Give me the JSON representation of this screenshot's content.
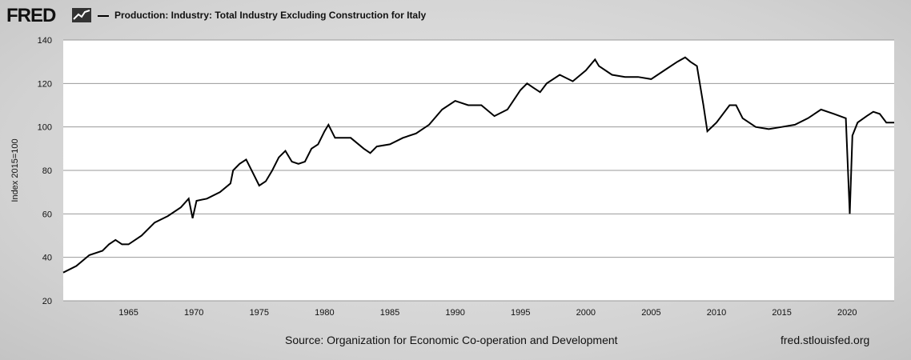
{
  "header": {
    "logo": "FRED",
    "logo_icon": "chart-line-icon",
    "title": "Production: Industry: Total Industry Excluding Construction for Italy"
  },
  "footer": {
    "source": "Source: Organization for Economic Co-operation and Development",
    "url": "fred.stlouisfed.org"
  },
  "chart_data": {
    "type": "line",
    "title": "Production: Industry: Total Industry Excluding Construction for Italy",
    "ylabel": "Index 2015=100",
    "xlabel": "",
    "xlim": [
      1960.0,
      2023.6
    ],
    "ylim": [
      20,
      140
    ],
    "yticks": [
      20,
      40,
      60,
      80,
      100,
      120,
      140
    ],
    "xticks": [
      1965,
      1970,
      1975,
      1980,
      1985,
      1990,
      1995,
      2000,
      2005,
      2010,
      2015,
      2020
    ],
    "grid": true,
    "line_color": "#000000",
    "series": [
      {
        "name": "Production: Industry: Total Industry Excluding Construction for Italy",
        "points": [
          [
            1960.0,
            33
          ],
          [
            1961.0,
            36
          ],
          [
            1962.0,
            41
          ],
          [
            1963.0,
            43
          ],
          [
            1963.5,
            46
          ],
          [
            1964.0,
            48
          ],
          [
            1964.5,
            46
          ],
          [
            1965.0,
            46
          ],
          [
            1966.0,
            50
          ],
          [
            1967.0,
            56
          ],
          [
            1968.0,
            59
          ],
          [
            1969.0,
            63
          ],
          [
            1969.6,
            67
          ],
          [
            1969.9,
            58
          ],
          [
            1970.2,
            66
          ],
          [
            1971.0,
            67
          ],
          [
            1972.0,
            70
          ],
          [
            1972.8,
            74
          ],
          [
            1973.0,
            80
          ],
          [
            1973.5,
            83
          ],
          [
            1974.0,
            85
          ],
          [
            1974.5,
            79
          ],
          [
            1975.0,
            73
          ],
          [
            1975.5,
            75
          ],
          [
            1976.0,
            80
          ],
          [
            1976.5,
            86
          ],
          [
            1977.0,
            89
          ],
          [
            1977.5,
            84
          ],
          [
            1978.0,
            83
          ],
          [
            1978.5,
            84
          ],
          [
            1979.0,
            90
          ],
          [
            1979.5,
            92
          ],
          [
            1980.0,
            98
          ],
          [
            1980.3,
            101
          ],
          [
            1980.8,
            95
          ],
          [
            1981.0,
            95
          ],
          [
            1982.0,
            95
          ],
          [
            1983.0,
            90
          ],
          [
            1983.5,
            88
          ],
          [
            1984.0,
            91
          ],
          [
            1985.0,
            92
          ],
          [
            1986.0,
            95
          ],
          [
            1987.0,
            97
          ],
          [
            1988.0,
            101
          ],
          [
            1989.0,
            108
          ],
          [
            1990.0,
            112
          ],
          [
            1991.0,
            110
          ],
          [
            1992.0,
            110
          ],
          [
            1993.0,
            105
          ],
          [
            1994.0,
            108
          ],
          [
            1995.0,
            117
          ],
          [
            1995.5,
            120
          ],
          [
            1996.0,
            118
          ],
          [
            1996.5,
            116
          ],
          [
            1997.0,
            120
          ],
          [
            1998.0,
            124
          ],
          [
            1999.0,
            121
          ],
          [
            2000.0,
            126
          ],
          [
            2000.7,
            131
          ],
          [
            2001.0,
            128
          ],
          [
            2002.0,
            124
          ],
          [
            2003.0,
            123
          ],
          [
            2004.0,
            123
          ],
          [
            2005.0,
            122
          ],
          [
            2006.0,
            126
          ],
          [
            2007.0,
            130
          ],
          [
            2007.6,
            132
          ],
          [
            2008.0,
            130
          ],
          [
            2008.5,
            128
          ],
          [
            2009.0,
            110
          ],
          [
            2009.3,
            98
          ],
          [
            2010.0,
            102
          ],
          [
            2011.0,
            110
          ],
          [
            2011.5,
            110
          ],
          [
            2012.0,
            104
          ],
          [
            2013.0,
            100
          ],
          [
            2014.0,
            99
          ],
          [
            2015.0,
            100
          ],
          [
            2016.0,
            101
          ],
          [
            2017.0,
            104
          ],
          [
            2018.0,
            108
          ],
          [
            2019.0,
            106
          ],
          [
            2019.9,
            104
          ],
          [
            2020.2,
            60
          ],
          [
            2020.4,
            96
          ],
          [
            2020.8,
            102
          ],
          [
            2021.5,
            105
          ],
          [
            2022.0,
            107
          ],
          [
            2022.5,
            106
          ],
          [
            2023.0,
            102
          ],
          [
            2023.6,
            102
          ]
        ]
      }
    ]
  }
}
